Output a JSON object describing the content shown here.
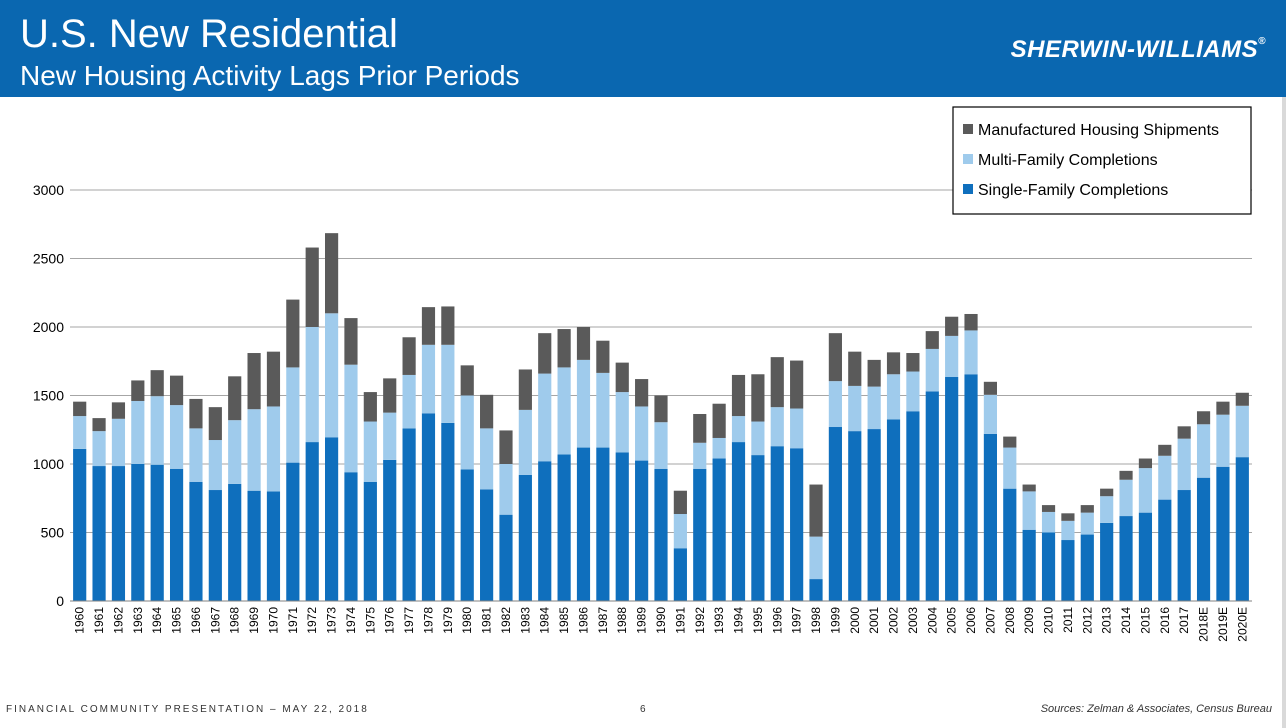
{
  "header": {
    "title": "U.S. New Residential",
    "subtitle": "New Housing Activity Lags Prior Periods",
    "brand": "SHERWIN-WILLIAMS",
    "brand_mark": "®"
  },
  "footer": {
    "left": "FINANCIAL COMMUNITY PRESENTATION – MAY 22, 2018",
    "page": "6",
    "sources": "Sources:  Zelman & Associates, Census Bureau"
  },
  "colors": {
    "header_bg": "#0a67b0",
    "single_family": "#0f6fbd",
    "multi_family": "#9fcbec",
    "manufactured": "#5a5a5a"
  },
  "chart_data": {
    "type": "bar",
    "stacked": true,
    "ylim": [
      0,
      3000
    ],
    "yticks": [
      0,
      500,
      1000,
      1500,
      2000,
      2500,
      3000
    ],
    "grid": true,
    "legend_position": "top-right",
    "categories": [
      "1960",
      "1961",
      "1962",
      "1963",
      "1964",
      "1965",
      "1966",
      "1967",
      "1968",
      "1969",
      "1970",
      "1971",
      "1972",
      "1973",
      "1974",
      "1975",
      "1976",
      "1977",
      "1978",
      "1979",
      "1980",
      "1981",
      "1982",
      "1983",
      "1984",
      "1985",
      "1986",
      "1987",
      "1988",
      "1989",
      "1990",
      "1991",
      "1992",
      "1993",
      "1994",
      "1995",
      "1996",
      "1997",
      "1998",
      "1999",
      "2000",
      "2001",
      "2002",
      "2003",
      "2004",
      "2005",
      "2006",
      "2007",
      "2008",
      "2009",
      "2010",
      "2011",
      "2012",
      "2013",
      "2014",
      "2015",
      "2016",
      "2017",
      "2018E",
      "2019E",
      "2020E"
    ],
    "series": [
      {
        "name": "Single-Family Completions",
        "color": "#0f6fbd",
        "values": [
          1110,
          985,
          985,
          1000,
          995,
          965,
          870,
          810,
          855,
          805,
          800,
          1010,
          1160,
          1195,
          940,
          870,
          1030,
          1260,
          1370,
          1300,
          960,
          815,
          630,
          920,
          1020,
          1070,
          1120,
          1120,
          1085,
          1025,
          965,
          385,
          965,
          1040,
          1160,
          1065,
          1130,
          1115,
          160,
          1270,
          1240,
          1255,
          1325,
          1385,
          1530,
          1635,
          1655,
          1220,
          820,
          520,
          500,
          445,
          485,
          570,
          620,
          645,
          740,
          810,
          900,
          980,
          1050
        ]
      },
      {
        "name": "Multi-Family Completions",
        "color": "#9fcbec",
        "values": [
          240,
          255,
          345,
          460,
          500,
          465,
          390,
          365,
          465,
          595,
          620,
          695,
          840,
          905,
          785,
          440,
          345,
          390,
          500,
          570,
          540,
          445,
          370,
          475,
          640,
          635,
          640,
          545,
          440,
          395,
          340,
          250,
          190,
          150,
          190,
          245,
          285,
          290,
          310,
          335,
          330,
          310,
          330,
          290,
          310,
          300,
          320,
          285,
          300,
          280,
          150,
          140,
          160,
          195,
          265,
          325,
          320,
          375,
          390,
          380,
          375
        ]
      },
      {
        "name": "Manufactured Housing Shipments",
        "color": "#5a5a5a",
        "values": [
          105,
          95,
          120,
          150,
          190,
          215,
          215,
          240,
          320,
          410,
          400,
          495,
          580,
          585,
          340,
          215,
          250,
          275,
          275,
          280,
          220,
          245,
          245,
          295,
          295,
          280,
          240,
          235,
          215,
          200,
          195,
          170,
          210,
          250,
          300,
          345,
          365,
          350,
          380,
          350,
          250,
          195,
          160,
          135,
          130,
          140,
          120,
          95,
          80,
          50,
          50,
          55,
          55,
          55,
          65,
          70,
          80,
          90,
          95,
          95,
          95
        ]
      }
    ]
  }
}
